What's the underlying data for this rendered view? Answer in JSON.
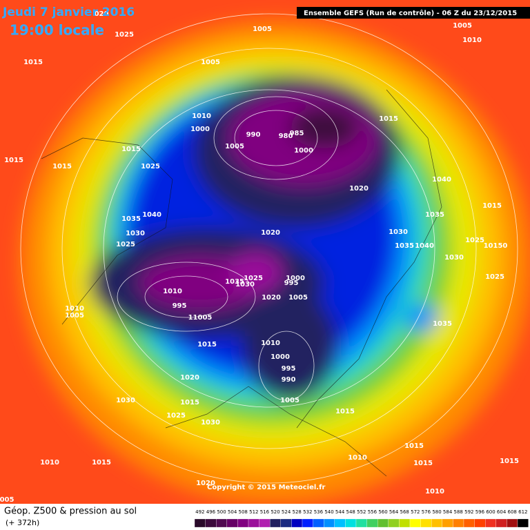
{
  "header": {
    "date": "Jeudi 7 janvier 2016",
    "time": "19:00 locale",
    "model": "Ensemble GEFS  (Run de contrôle)  -  06 Z du 23/12/2015",
    "copyright": "Copyright © 2015 Meteociel.fr"
  },
  "footer": {
    "title": "Géop. Z500 & pression au sol",
    "lead": "(+ 372h)"
  },
  "scale": {
    "values": [
      492,
      496,
      500,
      504,
      508,
      512,
      516,
      520,
      524,
      528,
      532,
      536,
      540,
      544,
      548,
      552,
      556,
      560,
      564,
      568,
      572,
      576,
      580,
      584,
      588,
      592,
      596,
      600,
      604,
      608,
      612
    ],
    "colors": [
      "#2a0a2a",
      "#3c0a3c",
      "#500a50",
      "#660066",
      "#800080",
      "#9a109a",
      "#b020b0",
      "#202060",
      "#1a2a80",
      "#0000c0",
      "#0020ff",
      "#0060ff",
      "#0090ff",
      "#00c0ff",
      "#00e0e0",
      "#20e0a0",
      "#40d060",
      "#60c030",
      "#90d020",
      "#c0e000",
      "#ffff00",
      "#ffe000",
      "#ffc000",
      "#ffa000",
      "#ff8000",
      "#ff6000",
      "#ff4000",
      "#f03020",
      "#d02020",
      "#a01010",
      "#000000"
    ]
  },
  "isobars": [
    "1015",
    "1025",
    "1005",
    "1005",
    "1010",
    "1000",
    "1005",
    "990",
    "985",
    "980",
    "1000",
    "1015",
    "1020",
    "1040",
    "1015",
    "1035",
    "1030",
    "1035",
    "1040",
    "1025",
    "1030",
    "10150",
    "1025",
    "1035",
    "1015",
    "1015",
    "1015",
    "1025",
    "1035",
    "1040",
    "1030",
    "1025",
    "1020",
    "1010",
    "995",
    "11005",
    "1035",
    "1025",
    "1030",
    "1020",
    "1000",
    "995",
    "1005",
    "1010",
    "1005",
    "1015",
    "1010",
    "1000",
    "995",
    "990",
    "1020",
    "1030",
    "1015",
    "1025",
    "1030",
    "1005",
    "1015",
    "1010",
    "1015",
    "1015",
    "1015",
    "1010",
    "1015",
    "1020",
    "1010",
    "1005",
    "1010",
    "020",
    "005"
  ]
}
